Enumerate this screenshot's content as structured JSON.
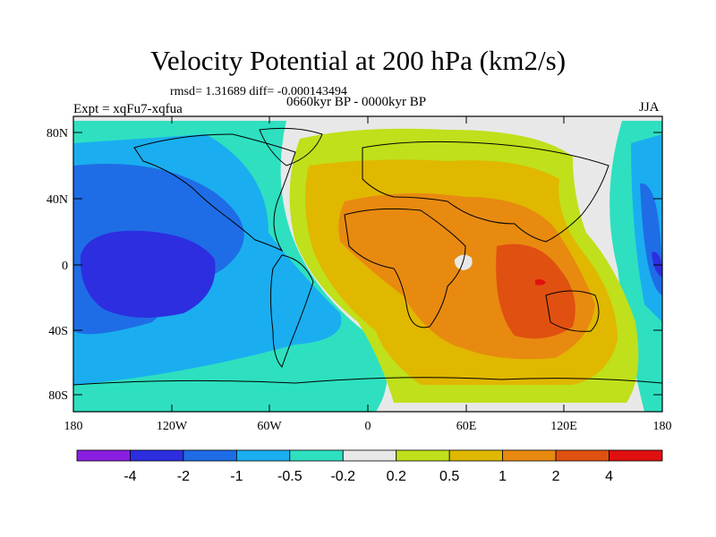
{
  "title": "Velocity Potential at 200 hPa (km2/s)",
  "stats": "rmsd= 1.31689 diff= -0.000143494",
  "experiment": "Expt = xqFu7-xqfua",
  "period": "0660kyr BP - 0000kyr BP",
  "season": "JJA",
  "lat_labels": [
    "80N",
    "40N",
    "0",
    "40S",
    "80S"
  ],
  "lon_labels": [
    "180",
    "120W",
    "60W",
    "0",
    "60E",
    "120E",
    "180"
  ],
  "colorbar": {
    "labels": [
      "-4",
      "-2",
      "-1",
      "-0.5",
      "-0.2",
      "0.2",
      "0.5",
      "1",
      "2",
      "4"
    ],
    "colors": [
      "#8a1ee0",
      "#2c2ee0",
      "#1f6de6",
      "#1aaef0",
      "#2ee0c0",
      "#e8e8e8",
      "#bfe01a",
      "#e0b800",
      "#e88a10",
      "#e05010",
      "#e01010"
    ]
  }
}
